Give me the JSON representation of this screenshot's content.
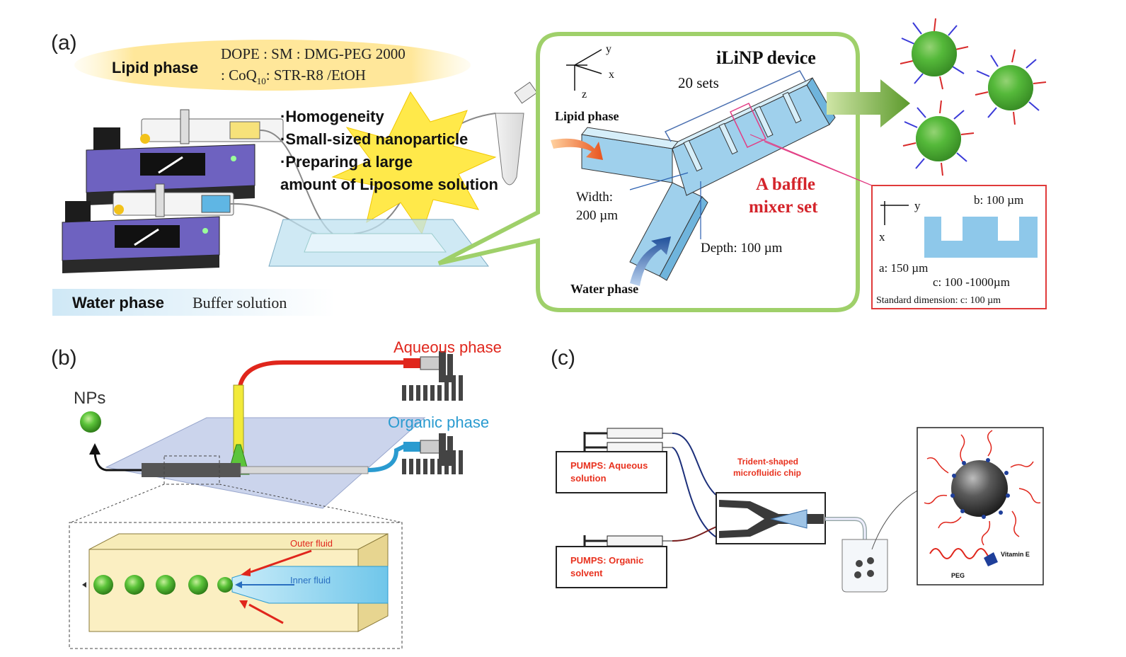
{
  "panels": {
    "a": {
      "label": "(a)",
      "lipid_phase": {
        "title": "Lipid phase",
        "line1": "DOPE : SM : DMG-PEG 2000",
        "line2_pre": ": CoQ",
        "line2_sub": "10",
        "line2_post": ": STR-R8 /EtOH"
      },
      "water_phase": {
        "title": "Water phase",
        "detail": "Buffer solution"
      },
      "burst_items": [
        "·Homogeneity",
        "·Small-sized nanoparticle",
        "·Preparing a large",
        "amount of Liposome solution"
      ],
      "device": {
        "title": "iLiNP device",
        "sets": "20 sets",
        "lipid_inlet": "Lipid phase",
        "water_inlet": "Water phase",
        "width_label": "Width:",
        "width_value": "200 µm",
        "depth": "Depth: 100 µm",
        "baffle_line1": "A baffle",
        "baffle_line2": "mixer set",
        "axis_y": "y",
        "axis_x": "x",
        "axis_z": "z"
      },
      "dimension_box": {
        "axis_y": "y",
        "axis_x": "x",
        "b": "b: 100 µm",
        "a": "a: 150 µm",
        "c": "c: 100 -1000µm",
        "standard": "Standard dimension: c: 100 µm"
      }
    },
    "b": {
      "label": "(b)",
      "aqueous": "Aqueous phase",
      "organic": "Organic phase",
      "nps": "NPs",
      "outer": "Outer fluid",
      "inner": "Inner fluid"
    },
    "c": {
      "label": "(c)",
      "pump_aq_line1": "PUMPS: Aqueous",
      "pump_aq_line2": "solution",
      "pump_org_line1": "PUMPS: Organic",
      "pump_org_line2": "solvent",
      "chip_line1": "Trident-shaped",
      "chip_line2": "microfluidic chip",
      "vitamin": "Vitamin E",
      "peg": "PEG"
    }
  },
  "colors": {
    "aqueous_red": "#e0261c",
    "organic_blue": "#2a9bd0",
    "green_np": "#5cc43a",
    "device_blue": "#9fd0ec",
    "pump_purple": "#5a4fa8",
    "callout_green": "#8fc35a",
    "baffle_red": "#d4242b",
    "warning_yellow": "#ffe94a",
    "label_red": "#e8321f"
  }
}
